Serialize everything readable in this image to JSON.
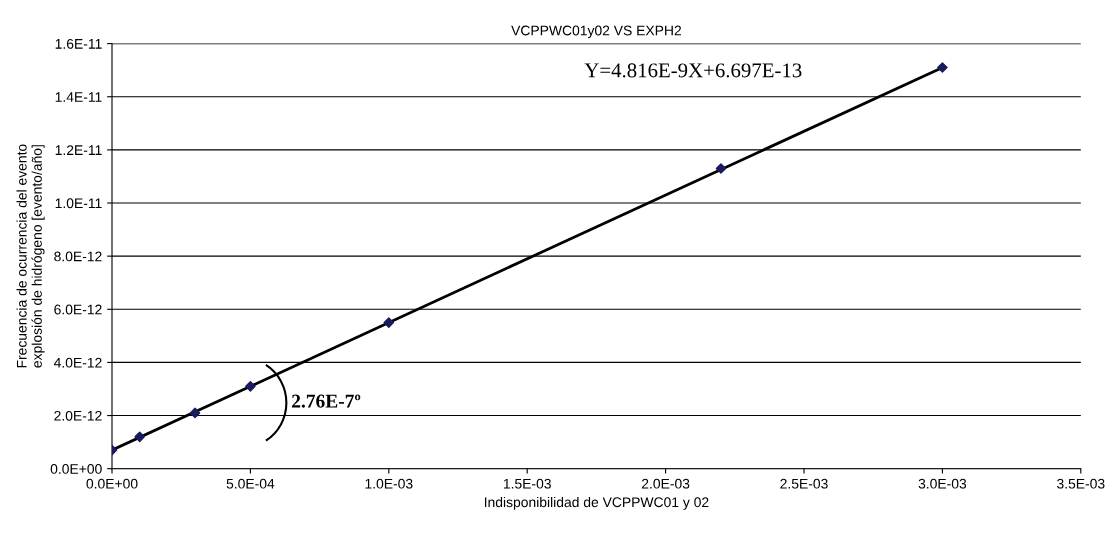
{
  "chart_data": {
    "type": "line",
    "title": "VCPPWC01y02 VS EXPH2",
    "xlabel": "Indisponibilidad de VCPPWC01 y 02",
    "ylabel": "Frecuencia de ocurrencia del evento\nexplosión de hidrógeno [evento/año]",
    "series": [
      {
        "type": "scatter",
        "marker": "diamond",
        "color": "#1a1a5e",
        "x": [
          0,
          0.0001,
          0.0003,
          0.0005,
          0.001,
          0.0022,
          0.003
        ],
        "values": [
          7e-13,
          1.2e-12,
          2.1e-12,
          3.1e-12,
          5.5e-12,
          1.13e-11,
          1.51e-11
        ]
      },
      {
        "color": "#000000",
        "x": [
          0,
          0.003
        ],
        "values": [
          7e-13,
          1.51e-11
        ]
      }
    ],
    "xlim": [
      0,
      0.0035
    ],
    "xticks": [
      {
        "value": 0,
        "label": "0.0E+00"
      },
      {
        "value": 0.0005,
        "label": "5.0E-04"
      },
      {
        "value": 0.001,
        "label": "1.0E-03"
      },
      {
        "value": 0.0015,
        "label": "1.5E-03"
      },
      {
        "value": 0.002,
        "label": "2.0E-03"
      },
      {
        "value": 0.0025,
        "label": "2.5E-03"
      },
      {
        "value": 0.003,
        "label": "3.0E-03"
      },
      {
        "value": 0.0035,
        "label": "3.5E-03"
      }
    ],
    "ylim": [
      0,
      1.6e-11
    ],
    "yticks": [
      {
        "value": 0,
        "label": "0.0E+00"
      },
      {
        "value": 2e-12,
        "label": "2.0E-12"
      },
      {
        "value": 4e-12,
        "label": "4.0E-12"
      },
      {
        "value": 6e-12,
        "label": "6.0E-12"
      },
      {
        "value": 8e-12,
        "label": "8.0E-12"
      },
      {
        "value": 1e-11,
        "label": "1.0E-11"
      },
      {
        "value": 1.2e-11,
        "label": "1.2E-11"
      },
      {
        "value": 1.4e-11,
        "label": "1.4E-11"
      },
      {
        "value": 1.6e-11,
        "label": "1.6E-11"
      }
    ],
    "grid": "y",
    "annotations": [
      "Y=4.816E-9X+6.697E-13",
      "2.76E-7º"
    ]
  }
}
